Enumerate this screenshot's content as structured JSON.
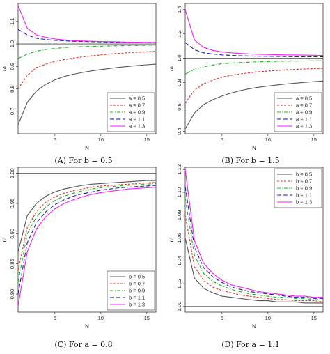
{
  "colors": {
    "a05": "#555555",
    "a07": "#e0302a",
    "a09": "#1db31d",
    "a11": "#1a1ab5",
    "a13": "#ee22ee",
    "reference": "#444444"
  },
  "chart_data": [
    {
      "type": "line",
      "caption": "(A) For b = 0.5",
      "xlabel": "N",
      "ylabel": "ω",
      "xlim": [
        1,
        16
      ],
      "ylim": [
        0.6,
        1.18
      ],
      "xticks": [
        5,
        10,
        15
      ],
      "yticks": [
        0.7,
        0.8,
        0.9,
        1.0,
        1.1
      ],
      "ytick_labels": [
        "0.7",
        "0.8",
        "0.9",
        "1.0",
        "1.1"
      ],
      "reference_line": 1.0,
      "legend": "bottom-right",
      "x": [
        1,
        2,
        3,
        4,
        5,
        6,
        7,
        8,
        9,
        10,
        11,
        12,
        13,
        14,
        15,
        16
      ],
      "series": [
        {
          "name": "a = 0.5",
          "color": "#555555",
          "dash": "solid",
          "values": [
            0.64,
            0.74,
            0.79,
            0.82,
            0.84,
            0.855,
            0.865,
            0.873,
            0.88,
            0.886,
            0.891,
            0.896,
            0.9,
            0.904,
            0.907,
            0.91
          ]
        },
        {
          "name": "a = 0.7",
          "color": "#e0302a",
          "dash": "short",
          "values": [
            0.8,
            0.86,
            0.895,
            0.91,
            0.922,
            0.93,
            0.937,
            0.942,
            0.947,
            0.951,
            0.955,
            0.958,
            0.961,
            0.963,
            0.965,
            0.967
          ]
        },
        {
          "name": "a = 0.9",
          "color": "#1db31d",
          "dash": "dashdot",
          "values": [
            0.935,
            0.955,
            0.968,
            0.975,
            0.98,
            0.983,
            0.986,
            0.988,
            0.989,
            0.99,
            0.991,
            0.992,
            0.993,
            0.993,
            0.994,
            0.994
          ]
        },
        {
          "name": "a = 1.1",
          "color": "#1a1ab5",
          "dash": "long",
          "values": [
            1.065,
            1.04,
            1.025,
            1.02,
            1.016,
            1.014,
            1.012,
            1.011,
            1.01,
            1.009,
            1.008,
            1.008,
            1.007,
            1.007,
            1.006,
            1.006
          ]
        },
        {
          "name": "a = 1.3",
          "color": "#ee22ee",
          "dash": "solid",
          "values": [
            1.17,
            1.07,
            1.04,
            1.03,
            1.022,
            1.018,
            1.015,
            1.013,
            1.012,
            1.011,
            1.01,
            1.009,
            1.008,
            1.008,
            1.007,
            1.007
          ]
        }
      ]
    },
    {
      "type": "line",
      "caption": "(B) For b = 1.5",
      "xlabel": "N",
      "ylabel": "ω",
      "xlim": [
        1,
        16
      ],
      "ylim": [
        0.38,
        1.45
      ],
      "xticks": [
        5,
        10,
        15
      ],
      "yticks": [
        0.4,
        0.6,
        0.8,
        1.0,
        1.2,
        1.4
      ],
      "ytick_labels": [
        "0.4",
        "0.6",
        "0.8",
        "1.0",
        "1.2",
        "1.4"
      ],
      "reference_line": 1.0,
      "legend": "bottom-right",
      "x": [
        1,
        2,
        3,
        4,
        5,
        6,
        7,
        8,
        9,
        10,
        11,
        12,
        13,
        14,
        15,
        16
      ],
      "series": [
        {
          "name": "a = 0.5",
          "color": "#555555",
          "dash": "solid",
          "values": [
            0.42,
            0.55,
            0.62,
            0.66,
            0.69,
            0.715,
            0.735,
            0.75,
            0.762,
            0.772,
            0.781,
            0.789,
            0.796,
            0.802,
            0.808,
            0.813
          ]
        },
        {
          "name": "a = 0.7",
          "color": "#e0302a",
          "dash": "short",
          "values": [
            0.63,
            0.74,
            0.79,
            0.82,
            0.845,
            0.86,
            0.872,
            0.881,
            0.889,
            0.895,
            0.9,
            0.905,
            0.909,
            0.912,
            0.915,
            0.918
          ]
        },
        {
          "name": "a = 0.9",
          "color": "#1db31d",
          "dash": "dashdot",
          "values": [
            0.87,
            0.91,
            0.93,
            0.945,
            0.955,
            0.96,
            0.965,
            0.968,
            0.971,
            0.973,
            0.975,
            0.976,
            0.977,
            0.978,
            0.979,
            0.98
          ]
        },
        {
          "name": "a = 1.1",
          "color": "#1a1ab5",
          "dash": "long",
          "values": [
            1.13,
            1.07,
            1.045,
            1.035,
            1.028,
            1.024,
            1.021,
            1.019,
            1.017,
            1.016,
            1.015,
            1.014,
            1.013,
            1.013,
            1.012,
            1.012
          ]
        },
        {
          "name": "a = 1.3",
          "color": "#ee22ee",
          "dash": "solid",
          "values": [
            1.4,
            1.15,
            1.09,
            1.065,
            1.052,
            1.045,
            1.04,
            1.036,
            1.033,
            1.031,
            1.029,
            1.028,
            1.027,
            1.026,
            1.025,
            1.024
          ]
        }
      ]
    },
    {
      "type": "line",
      "caption": "(C) For a = 0.8",
      "xlabel": "N",
      "ylabel": "ω",
      "xlim": [
        1,
        16
      ],
      "ylim": [
        0.77,
        1.01
      ],
      "xticks": [
        5,
        10,
        15
      ],
      "yticks": [
        0.8,
        0.85,
        0.9,
        0.95,
        1.0
      ],
      "ytick_labels": [
        "0.80",
        "0.85",
        "0.90",
        "0.95",
        "1.00"
      ],
      "reference_line": 1.0,
      "legend": "bottom-right",
      "x": [
        1,
        2,
        3,
        4,
        5,
        6,
        7,
        8,
        9,
        10,
        11,
        12,
        13,
        14,
        15,
        16
      ],
      "series": [
        {
          "name": "b = 0.5",
          "color": "#555555",
          "dash": "solid",
          "values": [
            0.87,
            0.93,
            0.95,
            0.962,
            0.969,
            0.974,
            0.977,
            0.98,
            0.982,
            0.983,
            0.984,
            0.985,
            0.986,
            0.987,
            0.988,
            0.988
          ]
        },
        {
          "name": "b = 0.7",
          "color": "#e0302a",
          "dash": "short",
          "values": [
            0.84,
            0.91,
            0.937,
            0.952,
            0.961,
            0.967,
            0.971,
            0.974,
            0.977,
            0.979,
            0.98,
            0.981,
            0.982,
            0.983,
            0.984,
            0.985
          ]
        },
        {
          "name": "b = 0.9",
          "color": "#1db31d",
          "dash": "dashdot",
          "values": [
            0.82,
            0.9,
            0.928,
            0.944,
            0.955,
            0.962,
            0.967,
            0.971,
            0.974,
            0.976,
            0.978,
            0.979,
            0.98,
            0.981,
            0.982,
            0.983
          ]
        },
        {
          "name": "b = 1.1",
          "color": "#1a1ab5",
          "dash": "long",
          "values": [
            0.8,
            0.885,
            0.918,
            0.936,
            0.948,
            0.956,
            0.962,
            0.966,
            0.969,
            0.972,
            0.974,
            0.976,
            0.977,
            0.978,
            0.979,
            0.98
          ]
        },
        {
          "name": "b = 1.3",
          "color": "#ee22ee",
          "dash": "solid",
          "values": [
            0.78,
            0.87,
            0.908,
            0.928,
            0.941,
            0.95,
            0.956,
            0.961,
            0.965,
            0.968,
            0.97,
            0.972,
            0.974,
            0.975,
            0.976,
            0.977
          ]
        }
      ]
    },
    {
      "type": "line",
      "caption": "(D) For a = 1.1",
      "xlabel": "N",
      "ylabel": "ω",
      "xlim": [
        1,
        16
      ],
      "ylim": [
        0.995,
        1.122
      ],
      "xticks": [
        5,
        10,
        15
      ],
      "yticks": [
        1.0,
        1.02,
        1.04,
        1.06,
        1.08,
        1.1,
        1.12
      ],
      "ytick_labels": [
        "1.00",
        "1.02",
        "1.04",
        "1.06",
        "1.08",
        "1.10",
        "1.12"
      ],
      "reference_line": 1.0,
      "legend": "top-right",
      "x": [
        1,
        2,
        3,
        4,
        5,
        6,
        7,
        8,
        9,
        10,
        11,
        12,
        13,
        14,
        15,
        16
      ],
      "series": [
        {
          "name": "b = 0.5",
          "color": "#555555",
          "dash": "solid",
          "values": [
            1.06,
            1.025,
            1.016,
            1.012,
            1.009,
            1.008,
            1.007,
            1.006,
            1.005,
            1.005,
            1.004,
            1.004,
            1.004,
            1.003,
            1.003,
            1.003
          ]
        },
        {
          "name": "b = 0.7",
          "color": "#e0302a",
          "dash": "short",
          "values": [
            1.08,
            1.035,
            1.023,
            1.017,
            1.014,
            1.012,
            1.01,
            1.009,
            1.008,
            1.007,
            1.006,
            1.006,
            1.005,
            1.005,
            1.005,
            1.004
          ]
        },
        {
          "name": "b = 0.9",
          "color": "#1db31d",
          "dash": "dashdot",
          "values": [
            1.095,
            1.045,
            1.029,
            1.022,
            1.018,
            1.015,
            1.013,
            1.011,
            1.01,
            1.009,
            1.008,
            1.008,
            1.007,
            1.007,
            1.006,
            1.006
          ]
        },
        {
          "name": "b = 1.1",
          "color": "#1a1ab5",
          "dash": "long",
          "values": [
            1.105,
            1.052,
            1.034,
            1.026,
            1.021,
            1.017,
            1.015,
            1.013,
            1.012,
            1.011,
            1.01,
            1.009,
            1.008,
            1.008,
            1.007,
            1.007
          ]
        },
        {
          "name": "b = 1.3",
          "color": "#ee22ee",
          "dash": "solid",
          "values": [
            1.12,
            1.058,
            1.038,
            1.029,
            1.023,
            1.019,
            1.017,
            1.015,
            1.013,
            1.012,
            1.011,
            1.01,
            1.009,
            1.009,
            1.008,
            1.008
          ]
        }
      ]
    }
  ]
}
